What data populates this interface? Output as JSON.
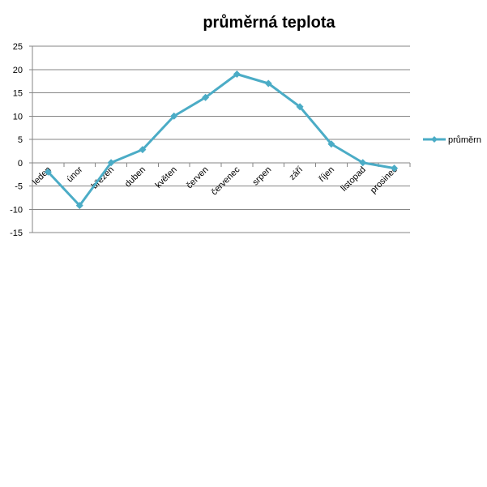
{
  "chart_data": {
    "type": "line",
    "title": "průměrná teplota",
    "xlabel": "",
    "ylabel": "",
    "ylim": [
      -15,
      25
    ],
    "yticks": [
      -15,
      -10,
      -5,
      0,
      5,
      10,
      15,
      20,
      25
    ],
    "grid": true,
    "legend": "right",
    "categories": [
      "leden",
      "únor",
      "březen",
      "duben",
      "květen",
      "červen",
      "červenec",
      "srpen",
      "září",
      "říjen",
      "listopad",
      "prosinec"
    ],
    "series": [
      {
        "name": "průměrn",
        "color": "#4bacc6",
        "marker": "diamond",
        "values": [
          -2,
          -9.2,
          0,
          2.8,
          10,
          14,
          19,
          17,
          12,
          4,
          0,
          -1.2
        ]
      }
    ]
  }
}
